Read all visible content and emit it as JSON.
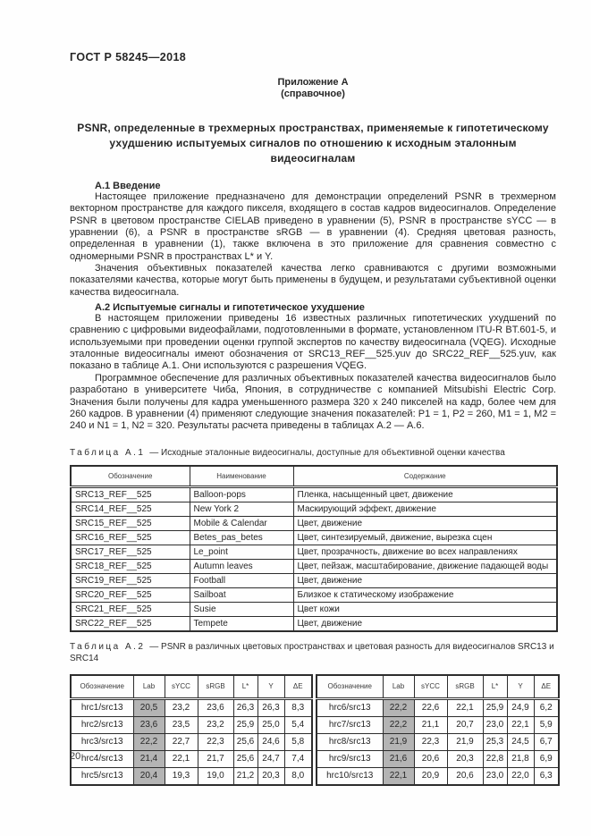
{
  "page": {
    "doc_code": "ГОСТ Р 58245—2018",
    "page_number": "20"
  },
  "appendix": {
    "label": "Приложение А",
    "note": "(справочное)",
    "title": "PSNR, определенные в трехмерных пространствах, применяемые к гипотетическому ухудшению испытуемых сигналов по отношению к исходным эталонным видеосигналам"
  },
  "section_a1": {
    "heading": "А.1 Введение",
    "paragraphs": [
      "Настоящее приложение предназначено для демонстрации определений PSNR в трехмерном векторном пространстве для каждого пикселя, входящего в состав кадров видеосигналов. Определение PSNR в цветовом пространстве CIELAB приведено в уравнении (5), PSNR в пространстве sYCC — в уравнении (6), а PSNR в пространстве sRGB — в уравнении (4). Средняя цветовая разность, определенная в уравнении (1), также включена в это приложение для сравнения совместно с одномерными PSNR в пространствах L* и Y.",
      "Значения объективных показателей качества легко сравниваются с другими возможными показателями качества, которые могут быть применены в будущем, и результатами субъективной оценки качества видеосигнала."
    ]
  },
  "section_a2": {
    "heading": "А.2 Испытуемые сигналы и гипотетическое ухудшение",
    "paragraphs": [
      "В настоящем приложении приведены 16 известных различных гипотетических ухудшений по сравнению с цифровыми видеофайлами, подготовленными в формате, установленном ITU-R BT.601-5, и используемыми при проведении оценки группой экспертов по качеству видеосигнала (VQEG). Исходные эталонные видеосигналы имеют обозначения от SRC13_REF__525.yuv до SRC22_REF__525.yuv, как показано в таблице А.1. Они используются с разрешения VQEG.",
      "Программное обеспечение для различных объективных показателей качества видеосигналов было разработано в университете Чиба, Япония, в сотрудничестве с компанией Mitsubishi Electric Corp. Значения были получены для кадра уменьшенного размера 320 x 240 пикселей на кадр, более чем для 260 кадров. В уравнении (4) применяют следующие значения показателей: P1 = 1, P2 = 260, M1 = 1, M2 = 240 и N1 = 1, N2 = 320. Результаты расчета приведены в таблицах А.2 — А.6."
    ]
  },
  "table_a1": {
    "caption_label": "Таблица А.1",
    "caption_text": "— Исходные эталонные видеосигналы, доступные для объективной оценки качества",
    "headers": [
      "Обозначение",
      "Наименование",
      "Содержание"
    ],
    "rows": [
      [
        "SRC13_REF__525",
        "Balloon-pops",
        "Пленка, насыщенный цвет, движение"
      ],
      [
        "SRC14_REF__525",
        "New York 2",
        "Маскирующий эффект, движение"
      ],
      [
        "SRC15_REF__525",
        "Mobile & Calendar",
        "Цвет, движение"
      ],
      [
        "SRC16_REF__525",
        "Betes_pas_betes",
        "Цвет, синтезируемый, движение, вырезка сцен"
      ],
      [
        "SRC17_REF__525",
        "Le_point",
        "Цвет, прозрачность, движение во всех направлениях"
      ],
      [
        "SRC18_REF__525",
        "Autumn leaves",
        "Цвет, пейзаж, масштабирование, движение падающей воды"
      ],
      [
        "SRC19_REF__525",
        "Football",
        "Цвет, движение"
      ],
      [
        "SRC20_REF__525",
        "Sailboat",
        "Близкое к статическому изображение"
      ],
      [
        "SRC21_REF__525",
        "Susie",
        "Цвет кожи"
      ],
      [
        "SRC22_REF__525",
        "Tempete",
        "Цвет, движение"
      ]
    ]
  },
  "table_a2": {
    "caption_label": "Таблица А.2",
    "caption_text": "— PSNR в различных цветовых пространствах и цветовая разность для видеосигналов SRC13 и SRC14",
    "headers": [
      "Обозначение",
      "Lab",
      "sYCC",
      "sRGB",
      "L*",
      "Y",
      "ΔE"
    ],
    "left_rows": [
      [
        "hrc1/src13",
        "20,5",
        "23,2",
        "23,6",
        "26,3",
        "26,3",
        "8,3"
      ],
      [
        "hrc2/src13",
        "23,6",
        "23,5",
        "23,2",
        "25,9",
        "25,0",
        "5,4"
      ],
      [
        "hrc3/src13",
        "22,2",
        "22,7",
        "22,3",
        "25,6",
        "24,6",
        "5,8"
      ],
      [
        "hrc4/src13",
        "21,4",
        "22,1",
        "21,7",
        "25,6",
        "24,7",
        "7,4"
      ],
      [
        "hrc5/src13",
        "20,4",
        "19,3",
        "19,0",
        "21,2",
        "20,3",
        "8,0"
      ]
    ],
    "right_rows": [
      [
        "hrc6/src13",
        "22,2",
        "22,6",
        "22,1",
        "25,9",
        "24,9",
        "6,2"
      ],
      [
        "hrc7/src13",
        "22,2",
        "21,1",
        "20,7",
        "23,0",
        "22,1",
        "5,9"
      ],
      [
        "hrc8/src13",
        "21,9",
        "22,3",
        "21,9",
        "25,3",
        "24,5",
        "6,7"
      ],
      [
        "hrc9/src13",
        "21,6",
        "20,6",
        "20,3",
        "22,8",
        "21,8",
        "6,9"
      ],
      [
        "hrc10/src13",
        "22,1",
        "20,9",
        "20,6",
        "23,0",
        "22,0",
        "6,3"
      ]
    ],
    "highlight_column": "Lab",
    "highlight_color": "#b4b4b4"
  },
  "colors": {
    "text": "#262626",
    "border": "#2d2d2d",
    "highlight": "#b4b4b4"
  }
}
